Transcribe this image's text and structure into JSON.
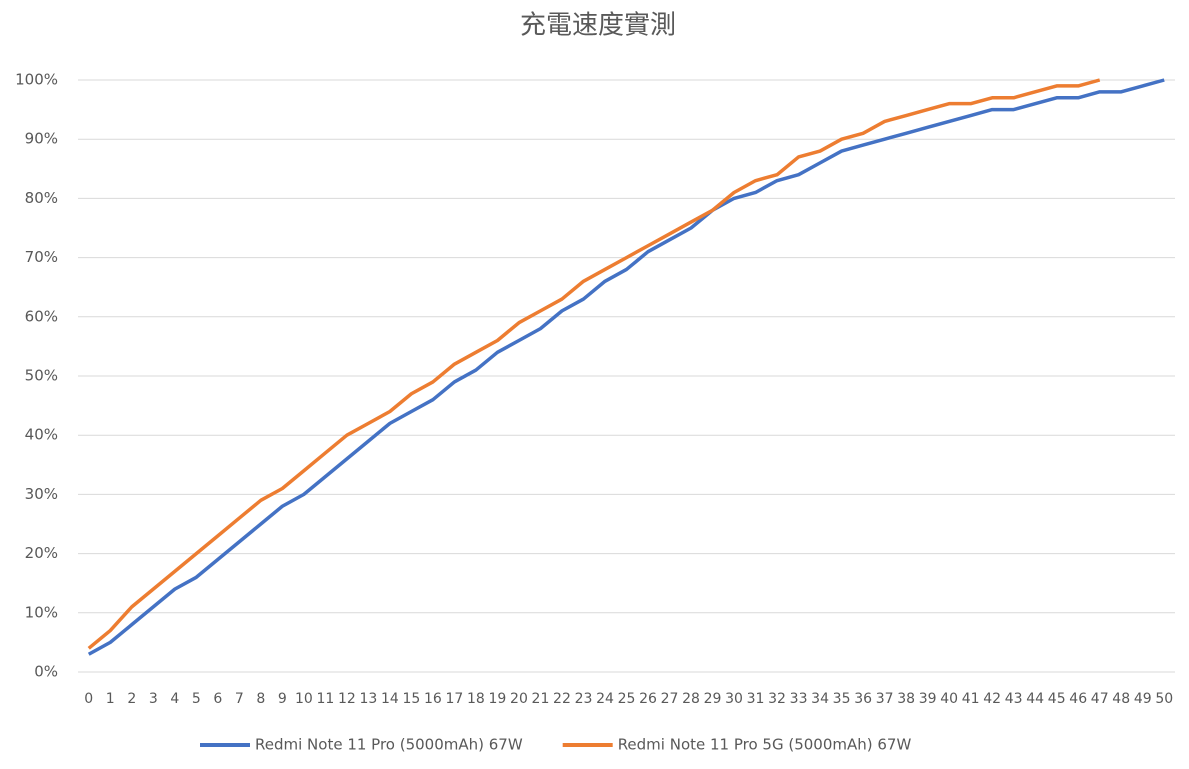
{
  "chart_data": {
    "type": "line",
    "title": "充電速度實測",
    "categories": [
      "0",
      "1",
      "2",
      "3",
      "4",
      "5",
      "6",
      "7",
      "8",
      "9",
      "10",
      "11",
      "12",
      "13",
      "14",
      "15",
      "16",
      "17",
      "18",
      "19",
      "20",
      "21",
      "22",
      "23",
      "24",
      "25",
      "26",
      "27",
      "28",
      "29",
      "30",
      "31",
      "32",
      "33",
      "34",
      "35",
      "36",
      "37",
      "38",
      "39",
      "40",
      "41",
      "42",
      "43",
      "44",
      "45",
      "46",
      "47",
      "48",
      "49",
      "50"
    ],
    "series": [
      {
        "name": "Redmi Note 11 Pro (5000mAh) 67W",
        "color": "#4472c4",
        "values": [
          3,
          5,
          8,
          11,
          14,
          16,
          19,
          22,
          25,
          28,
          30,
          33,
          36,
          39,
          42,
          44,
          46,
          49,
          51,
          54,
          56,
          58,
          61,
          63,
          66,
          68,
          71,
          73,
          75,
          78,
          80,
          81,
          83,
          84,
          86,
          88,
          89,
          90,
          91,
          92,
          93,
          94,
          95,
          95,
          96,
          97,
          97,
          98,
          98,
          99,
          100
        ]
      },
      {
        "name": "Redmi Note 11 Pro 5G (5000mAh) 67W",
        "color": "#ed7d31",
        "values": [
          4,
          7,
          11,
          14,
          17,
          20,
          23,
          26,
          29,
          31,
          34,
          37,
          40,
          42,
          44,
          47,
          49,
          52,
          54,
          56,
          59,
          61,
          63,
          66,
          68,
          70,
          72,
          74,
          76,
          78,
          81,
          83,
          84,
          87,
          88,
          90,
          91,
          93,
          94,
          95,
          96,
          96,
          97,
          97,
          98,
          99,
          99,
          100,
          null,
          null,
          null
        ]
      }
    ],
    "ylim": [
      0,
      100
    ],
    "yticks": [
      {
        "value": 0,
        "label": "0%"
      },
      {
        "value": 10,
        "label": "10%"
      },
      {
        "value": 20,
        "label": "20%"
      },
      {
        "value": 30,
        "label": "30%"
      },
      {
        "value": 40,
        "label": "40%"
      },
      {
        "value": 50,
        "label": "50%"
      },
      {
        "value": 60,
        "label": "60%"
      },
      {
        "value": 70,
        "label": "70%"
      },
      {
        "value": 80,
        "label": "80%"
      },
      {
        "value": 90,
        "label": "90%"
      },
      {
        "value": 100,
        "label": "100%"
      }
    ],
    "grid": true,
    "legend": "bottom"
  }
}
